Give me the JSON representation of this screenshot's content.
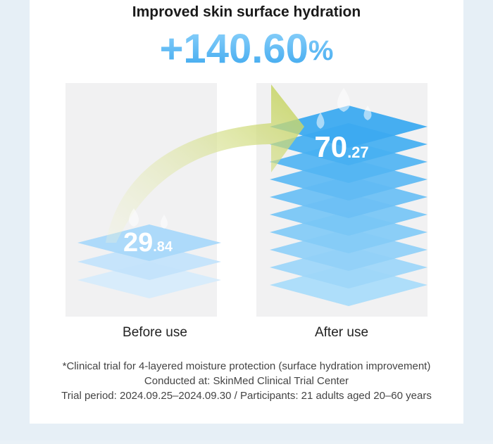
{
  "header": {
    "title": "Improved skin surface hydration",
    "headline": {
      "number": "+140.60",
      "unit": "%"
    }
  },
  "panels": [
    {
      "value": {
        "whole": "29",
        "decimal": ".84"
      },
      "label": "Before use"
    },
    {
      "value": {
        "whole": "70",
        "decimal": ".27"
      },
      "label": "After use"
    }
  ],
  "footnotes": [
    "*Clinical trial for 4-layered moisture protection (surface hydration improvement)",
    "Conducted at: SkinMed Clinical Trial Center",
    "Trial period: 2024.09.25–2024.09.30 / Participants: 21 adults aged 20–60 years"
  ]
}
